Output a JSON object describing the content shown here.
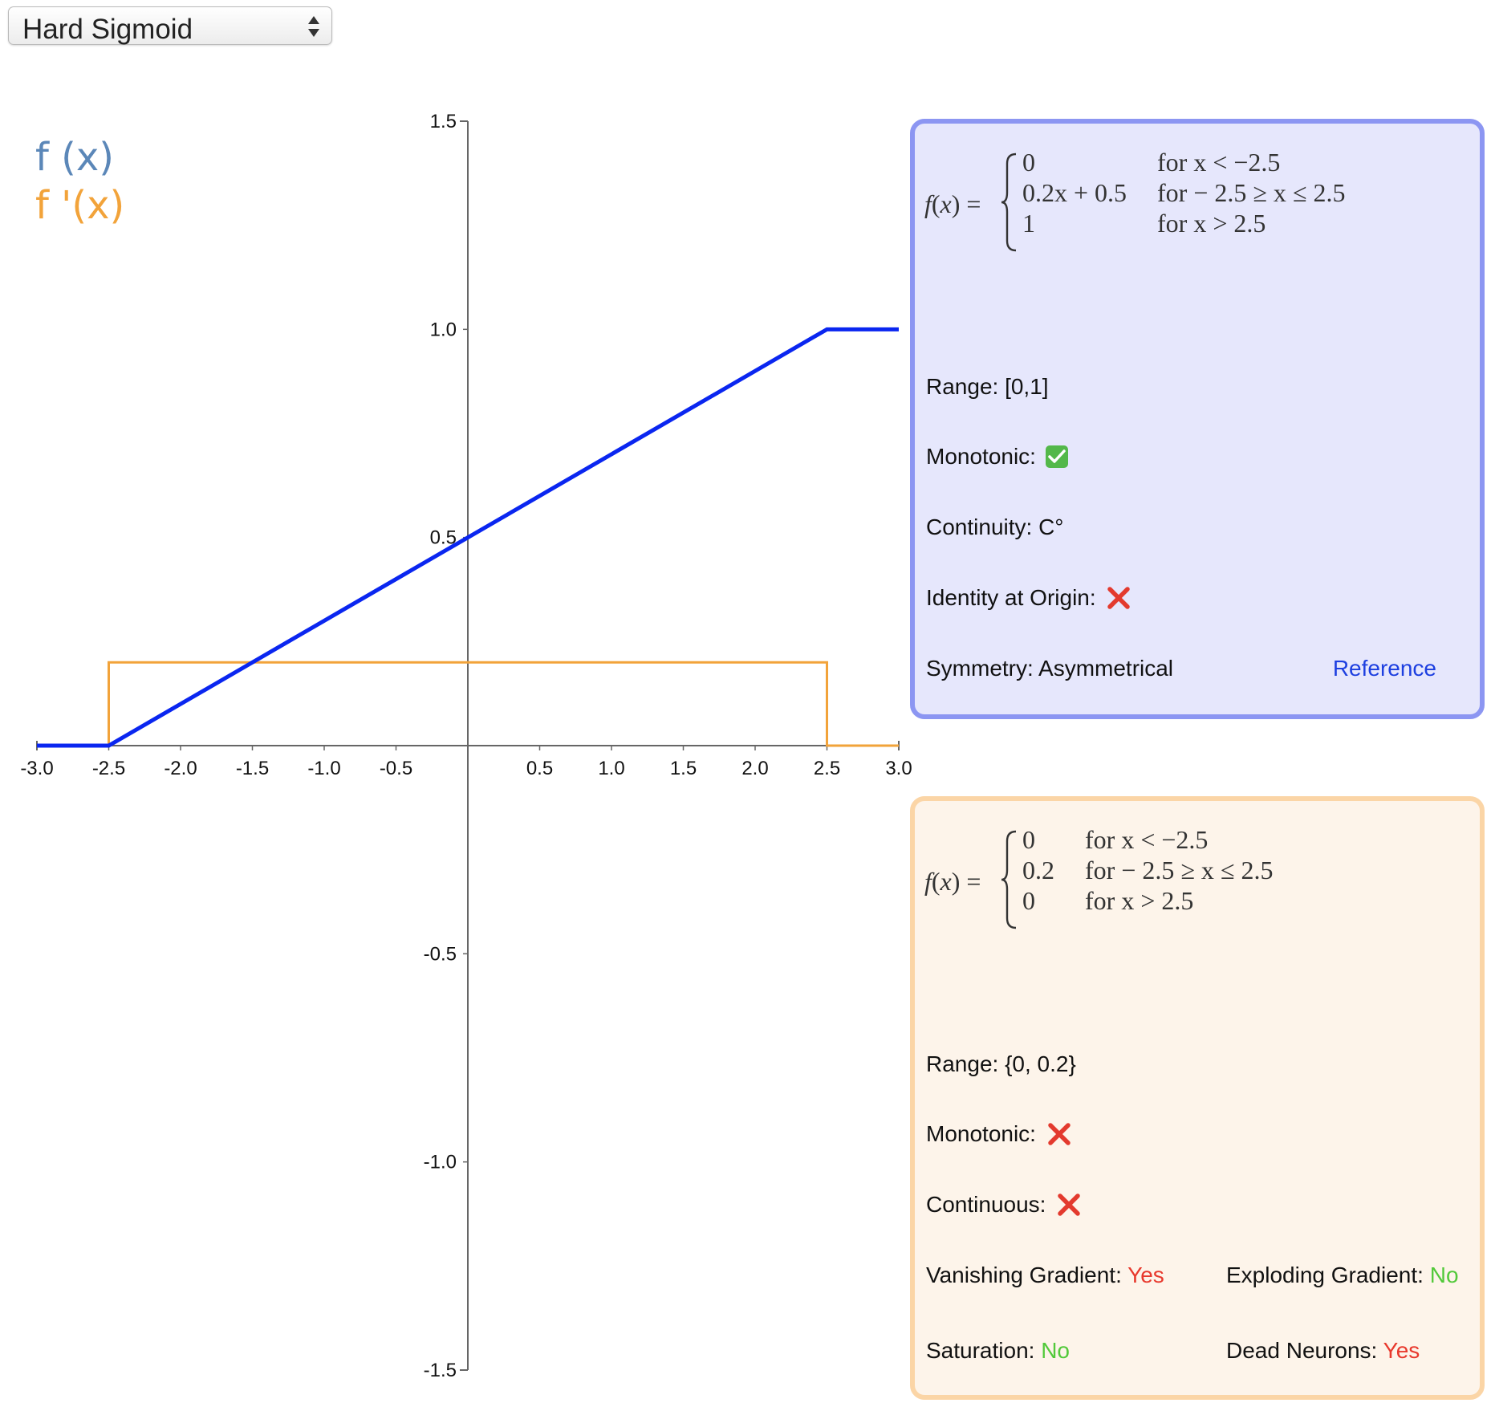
{
  "selector": {
    "selected": "Hard Sigmoid"
  },
  "legend": {
    "f": "f (x)",
    "fprime": "f '(x)"
  },
  "colors": {
    "f_line": "#0a26f0",
    "fprime_line": "#f2a33a",
    "legend_f": "#5b87b8",
    "legend_fprime": "#f2a33a",
    "box_f_bg": "#e6e7fc",
    "box_f_border": "#8c96f2",
    "box_fp_bg": "#fdf4ea",
    "box_fp_border": "#fbd5a6",
    "yes_red": "#e8392d",
    "no_green": "#52c93a",
    "link_blue": "#1d3fe0"
  },
  "chart_data": {
    "type": "line",
    "xlim": [
      -3.0,
      3.0
    ],
    "ylim": [
      -1.5,
      1.5
    ],
    "x_ticks": [
      "-3.0",
      "-2.5",
      "-2.0",
      "-1.5",
      "-1.0",
      "-0.5",
      "0.5",
      "1.0",
      "1.5",
      "2.0",
      "2.5",
      "3.0"
    ],
    "y_ticks": [
      "1.5",
      "1.0",
      "0.5",
      "-0.5",
      "-1.0",
      "-1.5"
    ],
    "series": [
      {
        "name": "f (x)",
        "points": [
          [
            -3.0,
            0
          ],
          [
            -2.5,
            0
          ],
          [
            2.5,
            1
          ],
          [
            3.0,
            1
          ]
        ]
      },
      {
        "name": "f '(x)",
        "points": [
          [
            -3.0,
            0
          ],
          [
            -2.5,
            0
          ],
          [
            -2.5,
            0.2
          ],
          [
            2.5,
            0.2
          ],
          [
            2.5,
            0
          ],
          [
            3.0,
            0
          ]
        ]
      }
    ],
    "grid": false
  },
  "function_box": {
    "formula_lhs": "f(x) =",
    "cases": [
      {
        "value": "0",
        "condition": "for x < −2.5"
      },
      {
        "value": "0.2x + 0.5",
        "condition": "for  − 2.5 ≥ x ≤ 2.5"
      },
      {
        "value": "1",
        "condition": "for x > 2.5"
      }
    ],
    "range_label": "Range: ",
    "range_value": "[0,1]",
    "monotonic_label": "Monotonic: ",
    "monotonic_value": true,
    "continuity_label": "Continuity: ",
    "continuity_value": "C°",
    "identity_label": "Identity at Origin: ",
    "identity_value": false,
    "symmetry_label": "Symmetry: ",
    "symmetry_value": "Asymmetrical",
    "reference_link": "Reference"
  },
  "derivative_box": {
    "formula_lhs": "f(x) =",
    "cases": [
      {
        "value": "0",
        "condition": "for x < −2.5"
      },
      {
        "value": "0.2",
        "condition": "for  − 2.5 ≥ x ≤ 2.5"
      },
      {
        "value": "0",
        "condition": "for x > 2.5"
      }
    ],
    "range_label": "Range: ",
    "range_value": "{0, 0.2}",
    "monotonic_label": "Monotonic: ",
    "monotonic_value": false,
    "continuous_label": "Continuous: ",
    "continuous_value": false,
    "vanishing_label": "Vanishing Gradient: ",
    "vanishing_value": "Yes",
    "exploding_label": "Exploding Gradient: ",
    "exploding_value": "No",
    "saturation_label": "Saturation: ",
    "saturation_value": "No",
    "dead_label": "Dead Neurons: ",
    "dead_value": "Yes"
  }
}
